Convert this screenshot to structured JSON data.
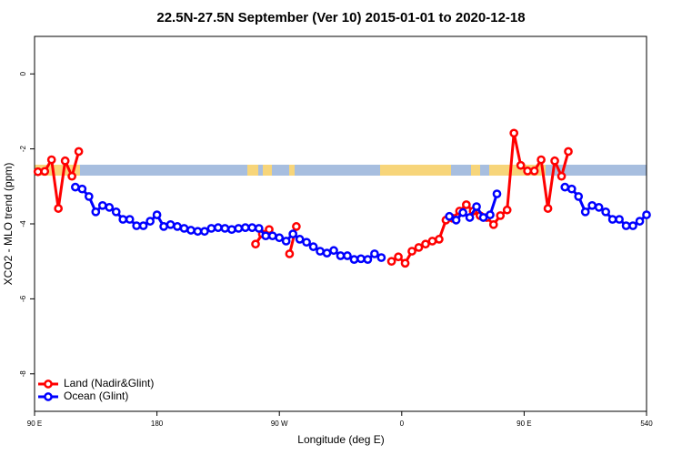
{
  "chart_data": {
    "type": "line",
    "title": "22.5N-27.5N September (Ver 10)   2015-01-01 to 2020-12-18",
    "xlabel": "Longitude (deg E)",
    "ylabel": "XCO2 - MLO trend (ppm)",
    "xlim": [
      90,
      540
    ],
    "xticks": [
      {
        "value": 90,
        "label": "90 E"
      },
      180,
      {
        "value": 270,
        "label": "90 W"
      },
      {
        "value": 360,
        "label": "0"
      },
      {
        "value": 450,
        "label": "90 E"
      },
      540
    ],
    "ylim": [
      -9,
      1
    ],
    "yticks": [
      0,
      -2,
      -4,
      -6,
      -8
    ],
    "legend": "bottom-left",
    "series": [
      {
        "name": "Land (Nadir&Glint)",
        "color": "#ff0000",
        "x": [
          92.5,
          97.5,
          102.5,
          107.5,
          112.5,
          117.5,
          122.5,
          127.5,
          252.5,
          257.5,
          262.5,
          267.5,
          277.5,
          282.5,
          287.5,
          352.5,
          357.5,
          362.5,
          367.5,
          372.5,
          377.5,
          382.5,
          387.5,
          392.5,
          397.5,
          402.5,
          407.5,
          412.5,
          417.5,
          422.5,
          427.5,
          432.5,
          437.5,
          442.5,
          447.5,
          452.5,
          457.5,
          462.5,
          467.5,
          472.5,
          477.5,
          482.5
        ],
        "values": [
          -2.61,
          -2.6,
          -2.29,
          -3.59,
          -2.32,
          -2.73,
          -2.07,
          null,
          -4.54,
          -4.27,
          -4.15,
          null,
          -4.8,
          -4.07,
          null,
          -5.0,
          -4.88,
          -5.05,
          -4.73,
          -4.63,
          -4.54,
          -4.46,
          -4.41,
          -3.9,
          -3.85,
          -3.66,
          -3.49,
          -3.66,
          -3.78,
          -3.83,
          -4.02,
          -3.78,
          -3.63,
          -1.58,
          -2.44,
          -2.59,
          -2.59,
          -2.29,
          -3.59,
          -2.32,
          -2.73,
          -2.07
        ]
      },
      {
        "name": "Ocean (Glint)",
        "color": "#0000ff",
        "x": [
          120,
          125,
          130,
          135,
          140,
          145,
          150,
          155,
          160,
          165,
          170,
          175,
          180,
          185,
          190,
          195,
          200,
          205,
          210,
          215,
          220,
          225,
          230,
          235,
          240,
          245,
          250,
          255,
          260,
          265,
          270,
          275,
          280,
          285,
          290,
          295,
          300,
          305,
          310,
          315,
          320,
          325,
          330,
          335,
          340,
          345,
          350,
          395,
          400,
          405,
          410,
          415,
          420,
          425,
          430,
          435,
          480,
          485,
          490,
          495,
          500,
          505,
          510,
          515,
          520,
          525,
          530,
          535,
          540
        ],
        "values": [
          -3.02,
          -3.07,
          -3.27,
          -3.68,
          -3.51,
          -3.56,
          -3.68,
          -3.88,
          -3.88,
          -4.05,
          -4.05,
          -3.93,
          -3.76,
          -4.07,
          -4.02,
          -4.07,
          -4.12,
          -4.17,
          -4.2,
          -4.2,
          -4.12,
          -4.1,
          -4.12,
          -4.15,
          -4.12,
          -4.1,
          -4.1,
          -4.12,
          -4.32,
          -4.32,
          -4.37,
          -4.46,
          -4.27,
          -4.41,
          -4.49,
          -4.61,
          -4.73,
          -4.78,
          -4.71,
          -4.85,
          -4.85,
          -4.95,
          -4.93,
          -4.95,
          -4.8,
          -4.9,
          null,
          -3.8,
          -3.9,
          -3.7,
          -3.83,
          -3.54,
          -3.83,
          -3.76,
          -3.2,
          null,
          -3.02,
          -3.07,
          -3.27,
          -3.68,
          -3.51,
          -3.56,
          -3.68,
          -3.88,
          -3.88,
          -4.05,
          -4.05,
          -3.93,
          -3.76
        ]
      }
    ]
  }
}
